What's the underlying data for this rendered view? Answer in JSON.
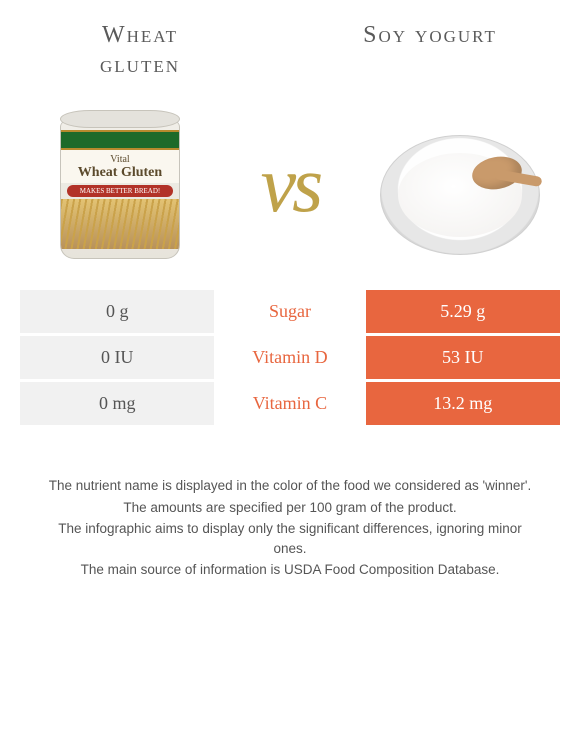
{
  "titles": {
    "left_line1": "Wheat",
    "left_line2": "gluten",
    "right": "Soy yogurt"
  },
  "vs_label": "vs",
  "colors": {
    "wheat_green": "#7aa84f",
    "soy_orange": "#e8663f",
    "row_gray": "#f1f1f1",
    "background": "#ffffff",
    "text": "#555555",
    "vs_gold": "#bfa24a"
  },
  "jar": {
    "brand_line": "Vital",
    "product_line": "Wheat Gluten",
    "tagline": "MAKES BETTER BREAD!"
  },
  "rows": [
    {
      "nutrient": "Sugar",
      "winner": "soy",
      "left_value": "0 g",
      "right_value": "5.29 g"
    },
    {
      "nutrient": "Vitamin D",
      "winner": "soy",
      "left_value": "0 IU",
      "right_value": "53 IU"
    },
    {
      "nutrient": "Vitamin C",
      "winner": "soy",
      "left_value": "0 mg",
      "right_value": "13.2 mg"
    }
  ],
  "footnotes": [
    "The nutrient name is displayed in the color of the food we considered as 'winner'.",
    "The amounts are specified per 100 gram of the product.",
    "The infographic aims to display only the significant differences, ignoring minor ones.",
    "The main source of information is USDA Food Composition Database."
  ]
}
